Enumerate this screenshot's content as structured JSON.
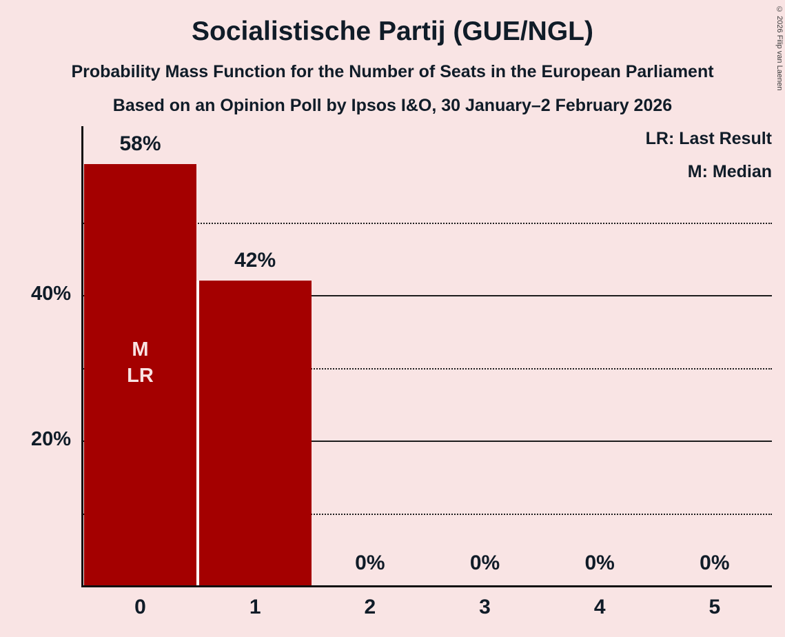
{
  "title": "Socialistische Partij (GUE/NGL)",
  "subtitle1": "Probability Mass Function for the Number of Seats in the European Parliament",
  "subtitle2": "Based on an Opinion Poll by Ipsos I&O, 30 January–2 February 2026",
  "legend": {
    "lr": "LR: Last Result",
    "m": "M: Median"
  },
  "copyright": "© 2026 Filip van Laenen",
  "colors": {
    "background": "#f9e4e4",
    "bar": "#a40000",
    "text": "#101c28",
    "bar_annotation": "#f9e4e4"
  },
  "chart_data": {
    "type": "bar",
    "title": "Socialistische Partij (GUE/NGL)",
    "xlabel": "",
    "ylabel": "",
    "categories": [
      "0",
      "1",
      "2",
      "3",
      "4",
      "5"
    ],
    "values": [
      58,
      42,
      0,
      0,
      0,
      0
    ],
    "value_labels": [
      "58%",
      "42%",
      "0%",
      "0%",
      "0%",
      "0%"
    ],
    "bar_annotations": [
      [
        "M",
        "LR"
      ],
      [],
      [],
      [],
      [],
      []
    ],
    "median_seats": "0",
    "last_result_seats": "0",
    "ylim": [
      0,
      63
    ],
    "yticks": [
      {
        "value": 20,
        "label": "20%"
      },
      {
        "value": 40,
        "label": "40%"
      }
    ],
    "gridlines": [
      {
        "value": 10,
        "style": "dotted"
      },
      {
        "value": 20,
        "style": "solid"
      },
      {
        "value": 30,
        "style": "dotted"
      },
      {
        "value": 40,
        "style": "solid"
      },
      {
        "value": 50,
        "style": "dotted"
      }
    ],
    "grid": true,
    "legend_position": "top-right"
  }
}
